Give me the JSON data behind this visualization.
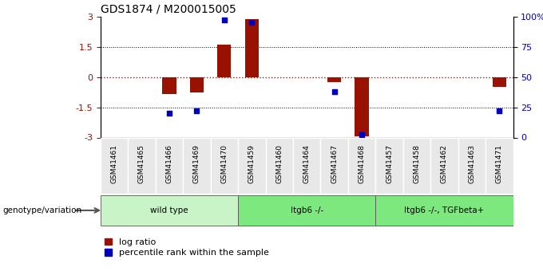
{
  "title": "GDS1874 / M200015005",
  "samples": [
    "GSM41461",
    "GSM41465",
    "GSM41466",
    "GSM41469",
    "GSM41470",
    "GSM41459",
    "GSM41460",
    "GSM41464",
    "GSM41467",
    "GSM41468",
    "GSM41457",
    "GSM41458",
    "GSM41462",
    "GSM41463",
    "GSM41471"
  ],
  "log_ratio": [
    0.0,
    0.0,
    -0.85,
    -0.75,
    1.6,
    2.85,
    0.0,
    0.0,
    -0.25,
    -2.95,
    0.0,
    0.0,
    0.0,
    0.0,
    -0.5
  ],
  "percentile_rank": [
    null,
    null,
    20,
    22,
    97,
    95,
    null,
    null,
    38,
    2,
    null,
    null,
    null,
    null,
    22
  ],
  "groups": [
    {
      "label": "wild type",
      "start": 0,
      "end": 5
    },
    {
      "label": "Itgb6 -/-",
      "start": 5,
      "end": 10
    },
    {
      "label": "Itgb6 -/-, TGFbeta+",
      "start": 10,
      "end": 15
    }
  ],
  "group_colors": [
    "#c8f4c8",
    "#7de87d",
    "#7de87d"
  ],
  "ylim_left": [
    -3,
    3
  ],
  "ylim_right": [
    0,
    100
  ],
  "yticks_left": [
    -3,
    -1.5,
    0,
    1.5,
    3
  ],
  "yticks_right": [
    0,
    25,
    50,
    75,
    100
  ],
  "ytick_labels_left": [
    "-3",
    "-1.5",
    "0",
    "1.5",
    "3"
  ],
  "ytick_labels_right": [
    "0",
    "25",
    "50",
    "75",
    "100%"
  ],
  "bar_color": "#991100",
  "dot_color": "#0000bb",
  "zero_line_color": "#cc0000",
  "legend_label_bar": "log ratio",
  "legend_label_dot": "percentile rank within the sample",
  "genotype_label": "genotype/variation"
}
